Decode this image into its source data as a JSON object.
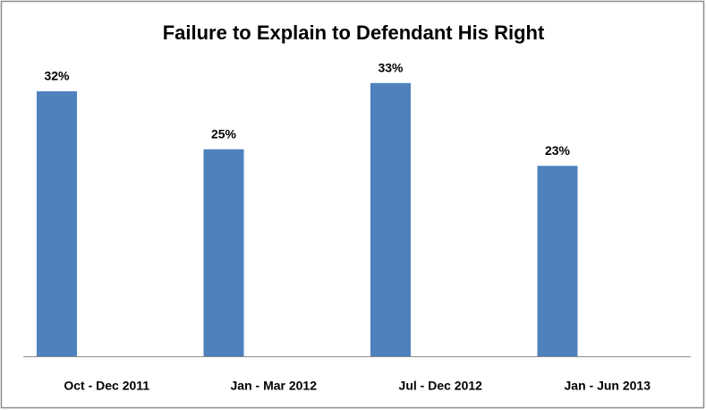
{
  "chart_data": {
    "type": "bar",
    "title": "Failure to Explain to Defendant His Right",
    "categories": [
      "Oct - Dec 2011",
      "Jan - Mar 2012",
      "Jul - Dec 2012",
      "Jan - Jun 2013"
    ],
    "values": [
      32,
      25,
      33,
      23
    ],
    "value_labels": [
      "32%",
      "25%",
      "33%",
      "23%"
    ],
    "color": "#4f81bd"
  }
}
